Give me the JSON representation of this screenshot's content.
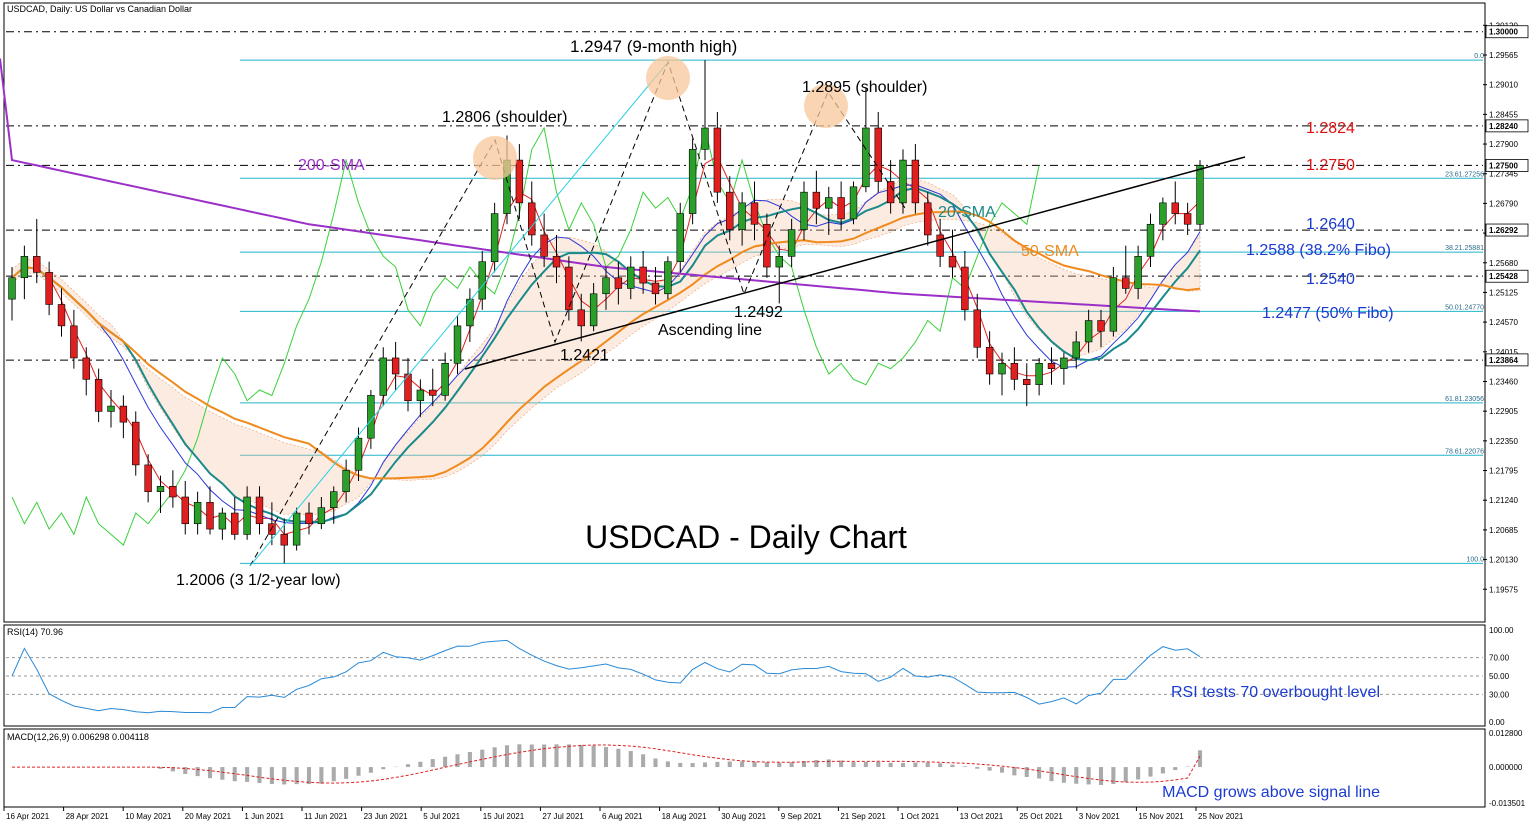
{
  "header": {
    "title": "USDCAD, Daily:  US Dollar vs Canadian Dollar"
  },
  "chart_data": {
    "type": "candlestick",
    "title": "USDCAD - Daily Chart",
    "price_axis": {
      "ylim": [
        1.19,
        1.305
      ],
      "ticks": [
        "1.30120",
        "1.29565",
        "1.29010",
        "1.28455",
        "1.27900",
        "1.27345",
        "1.26790",
        "1.26235",
        "1.25680",
        "1.25125",
        "1.24570",
        "1.24015",
        "1.23460",
        "1.22905",
        "1.22350",
        "1.21795",
        "1.21240",
        "1.20685",
        "1.20130",
        "1.19575"
      ],
      "current_price_label": "1.27500",
      "level_labels": [
        "1.30000",
        "1.28240",
        "1.26292",
        "1.25428",
        "1.23864"
      ]
    },
    "x_tick_labels": [
      "16 Apr 2021",
      "28 Apr 2021",
      "10 May 2021",
      "20 May 2021",
      "1 Jun 2021",
      "11 Jun 2021",
      "23 Jun 2021",
      "5 Jul 2021",
      "15 Jul 2021",
      "27 Jul 2021",
      "6 Aug 2021",
      "18 Aug 2021",
      "30 Aug 2021",
      "9 Sep 2021",
      "21 Sep 2021",
      "1 Oct 2021",
      "13 Oct 2021",
      "25 Oct 2021",
      "3 Nov 2021",
      "15 Nov 2021",
      "25 Nov 2021"
    ],
    "fibonacci": [
      {
        "label": "0.0",
        "price": 1.2947
      },
      {
        "label": "23.61.27256",
        "price": 1.2726
      },
      {
        "label": "38.21.25881",
        "price": 1.2588
      },
      {
        "label": "50.01.24770",
        "price": 1.2477
      },
      {
        "label": "61.81.23056",
        "price": 1.2306
      },
      {
        "label": "78.61.22076",
        "price": 1.2208
      },
      {
        "label": "100.0",
        "price": 1.2006
      }
    ],
    "horizontal_levels": [
      1.3,
      1.2824,
      1.275,
      1.2629,
      1.2543,
      1.2386
    ],
    "annotations": [
      {
        "text": "1.2947 (9-month high)",
        "color": "#000000"
      },
      {
        "text": "1.2806 (shoulder)",
        "color": "#000000"
      },
      {
        "text": "1.2895 (shoulder)",
        "color": "#000000"
      },
      {
        "text": "200-SMA",
        "color": "#9b30c8"
      },
      {
        "text": "20-SMA",
        "color": "#1a8a8a"
      },
      {
        "text": "50-SMA",
        "color": "#f08a1c"
      },
      {
        "text": "1.2824",
        "color": "#e01010"
      },
      {
        "text": "1.2750",
        "color": "#e01010"
      },
      {
        "text": "1.2640",
        "color": "#1a3ad0"
      },
      {
        "text": "1.2588 (38.2% Fibo)",
        "color": "#1a3ad0"
      },
      {
        "text": "1.2540",
        "color": "#1a3ad0"
      },
      {
        "text": "1.2477 (50% Fibo)",
        "color": "#1a3ad0"
      },
      {
        "text": "1.2492",
        "color": "#000000"
      },
      {
        "text": "Ascending line",
        "color": "#000000"
      },
      {
        "text": "1.2421",
        "color": "#000000"
      },
      {
        "text": "1.2006 (3 1/2-year low)",
        "color": "#000000"
      }
    ],
    "candles": [
      [
        1.25,
        1.256,
        1.246,
        1.254
      ],
      [
        1.254,
        1.26,
        1.25,
        1.258
      ],
      [
        1.258,
        1.265,
        1.253,
        1.255
      ],
      [
        1.255,
        1.257,
        1.247,
        1.249
      ],
      [
        1.249,
        1.252,
        1.243,
        1.245
      ],
      [
        1.245,
        1.248,
        1.237,
        1.239
      ],
      [
        1.239,
        1.241,
        1.232,
        1.235
      ],
      [
        1.235,
        1.237,
        1.227,
        1.229
      ],
      [
        1.229,
        1.233,
        1.226,
        1.23
      ],
      [
        1.23,
        1.232,
        1.224,
        1.227
      ],
      [
        1.227,
        1.229,
        1.217,
        1.219
      ],
      [
        1.219,
        1.221,
        1.212,
        1.214
      ],
      [
        1.214,
        1.217,
        1.21,
        1.215
      ],
      [
        1.215,
        1.218,
        1.211,
        1.213
      ],
      [
        1.213,
        1.216,
        1.206,
        1.208
      ],
      [
        1.208,
        1.214,
        1.206,
        1.212
      ],
      [
        1.212,
        1.215,
        1.206,
        1.207
      ],
      [
        1.207,
        1.211,
        1.205,
        1.21
      ],
      [
        1.21,
        1.213,
        1.205,
        1.206
      ],
      [
        1.206,
        1.215,
        1.205,
        1.213
      ],
      [
        1.213,
        1.215,
        1.206,
        1.208
      ],
      [
        1.208,
        1.212,
        1.204,
        1.206
      ],
      [
        1.206,
        1.209,
        1.2006,
        1.204
      ],
      [
        1.204,
        1.211,
        1.203,
        1.21
      ],
      [
        1.21,
        1.212,
        1.206,
        1.208
      ],
      [
        1.208,
        1.213,
        1.207,
        1.211
      ],
      [
        1.211,
        1.215,
        1.208,
        1.214
      ],
      [
        1.214,
        1.22,
        1.212,
        1.218
      ],
      [
        1.218,
        1.226,
        1.216,
        1.224
      ],
      [
        1.224,
        1.233,
        1.222,
        1.232
      ],
      [
        1.232,
        1.241,
        1.23,
        1.239
      ],
      [
        1.239,
        1.242,
        1.233,
        1.236
      ],
      [
        1.236,
        1.239,
        1.229,
        1.231
      ],
      [
        1.231,
        1.235,
        1.228,
        1.233
      ],
      [
        1.233,
        1.237,
        1.23,
        1.232
      ],
      [
        1.232,
        1.24,
        1.231,
        1.238
      ],
      [
        1.238,
        1.247,
        1.236,
        1.245
      ],
      [
        1.245,
        1.252,
        1.242,
        1.25
      ],
      [
        1.25,
        1.259,
        1.248,
        1.257
      ],
      [
        1.257,
        1.268,
        1.255,
        1.266
      ],
      [
        1.266,
        1.2806,
        1.264,
        1.276
      ],
      [
        1.276,
        1.279,
        1.265,
        1.268
      ],
      [
        1.268,
        1.272,
        1.26,
        1.262
      ],
      [
        1.262,
        1.266,
        1.256,
        1.258
      ],
      [
        1.258,
        1.262,
        1.253,
        1.256
      ],
      [
        1.256,
        1.258,
        1.246,
        1.248
      ],
      [
        1.248,
        1.251,
        1.2421,
        1.245
      ],
      [
        1.245,
        1.253,
        1.244,
        1.251
      ],
      [
        1.251,
        1.256,
        1.248,
        1.254
      ],
      [
        1.254,
        1.257,
        1.249,
        1.252
      ],
      [
        1.252,
        1.258,
        1.25,
        1.256
      ],
      [
        1.256,
        1.259,
        1.251,
        1.253
      ],
      [
        1.253,
        1.256,
        1.249,
        1.251
      ],
      [
        1.251,
        1.258,
        1.25,
        1.257
      ],
      [
        1.257,
        1.268,
        1.255,
        1.266
      ],
      [
        1.266,
        1.28,
        1.264,
        1.278
      ],
      [
        1.278,
        1.2947,
        1.276,
        1.282
      ],
      [
        1.282,
        1.285,
        1.268,
        1.27
      ],
      [
        1.27,
        1.273,
        1.261,
        1.263
      ],
      [
        1.263,
        1.27,
        1.26,
        1.268
      ],
      [
        1.268,
        1.272,
        1.261,
        1.264
      ],
      [
        1.264,
        1.266,
        1.254,
        1.256
      ],
      [
        1.256,
        1.26,
        1.2492,
        1.258
      ],
      [
        1.258,
        1.265,
        1.256,
        1.263
      ],
      [
        1.263,
        1.272,
        1.261,
        1.27
      ],
      [
        1.27,
        1.274,
        1.264,
        1.267
      ],
      [
        1.267,
        1.271,
        1.262,
        1.269
      ],
      [
        1.269,
        1.272,
        1.263,
        1.265
      ],
      [
        1.265,
        1.272,
        1.264,
        1.271
      ],
      [
        1.271,
        1.2895,
        1.27,
        1.282
      ],
      [
        1.282,
        1.285,
        1.27,
        1.272
      ],
      [
        1.272,
        1.276,
        1.266,
        1.268
      ],
      [
        1.268,
        1.278,
        1.266,
        1.276
      ],
      [
        1.276,
        1.279,
        1.266,
        1.268
      ],
      [
        1.268,
        1.27,
        1.26,
        1.262
      ],
      [
        1.262,
        1.265,
        1.256,
        1.258
      ],
      [
        1.258,
        1.263,
        1.254,
        1.256
      ],
      [
        1.256,
        1.259,
        1.246,
        1.248
      ],
      [
        1.248,
        1.251,
        1.239,
        1.241
      ],
      [
        1.241,
        1.244,
        1.234,
        1.236
      ],
      [
        1.236,
        1.24,
        1.232,
        1.238
      ],
      [
        1.238,
        1.241,
        1.233,
        1.235
      ],
      [
        1.235,
        1.238,
        1.23,
        1.234
      ],
      [
        1.234,
        1.239,
        1.232,
        1.238
      ],
      [
        1.238,
        1.241,
        1.234,
        1.237
      ],
      [
        1.237,
        1.24,
        1.234,
        1.239
      ],
      [
        1.239,
        1.244,
        1.237,
        1.242
      ],
      [
        1.242,
        1.248,
        1.24,
        1.246
      ],
      [
        1.246,
        1.248,
        1.241,
        1.244
      ],
      [
        1.244,
        1.256,
        1.243,
        1.254
      ],
      [
        1.254,
        1.26,
        1.251,
        1.252
      ],
      [
        1.252,
        1.26,
        1.25,
        1.258
      ],
      [
        1.258,
        1.266,
        1.256,
        1.264
      ],
      [
        1.264,
        1.269,
        1.261,
        1.268
      ],
      [
        1.268,
        1.272,
        1.264,
        1.266
      ],
      [
        1.266,
        1.268,
        1.262,
        1.264
      ],
      [
        1.264,
        1.276,
        1.263,
        1.275
      ]
    ],
    "sma200": [
      1.276,
      1.264,
      1.256,
      1.251,
      1.2477
    ],
    "rsi": {
      "label": "RSI(14) 70.96",
      "levels": [
        "100.00",
        "70.00",
        "50.00",
        "30.00",
        "0.00"
      ],
      "last": 70.96
    },
    "macd": {
      "label": "MACD(12,26,9) 0.006298 0.004118",
      "levels": [
        "0.012800",
        "0.000000",
        "-0.013501"
      ],
      "main": 0.006298,
      "signal": 0.004118
    },
    "rsi_note": "RSI tests 70 overbought level",
    "macd_note": "MACD grows above signal line"
  },
  "colors": {
    "bull": "#2aa02a",
    "bear": "#e02020",
    "sma20": "#1a8a8a",
    "sma50": "#f08a1c",
    "sma200": "#9b30c8",
    "fibo": "#22b5c8",
    "annot_blue": "#1a3ad0",
    "annot_red": "#e01010"
  }
}
